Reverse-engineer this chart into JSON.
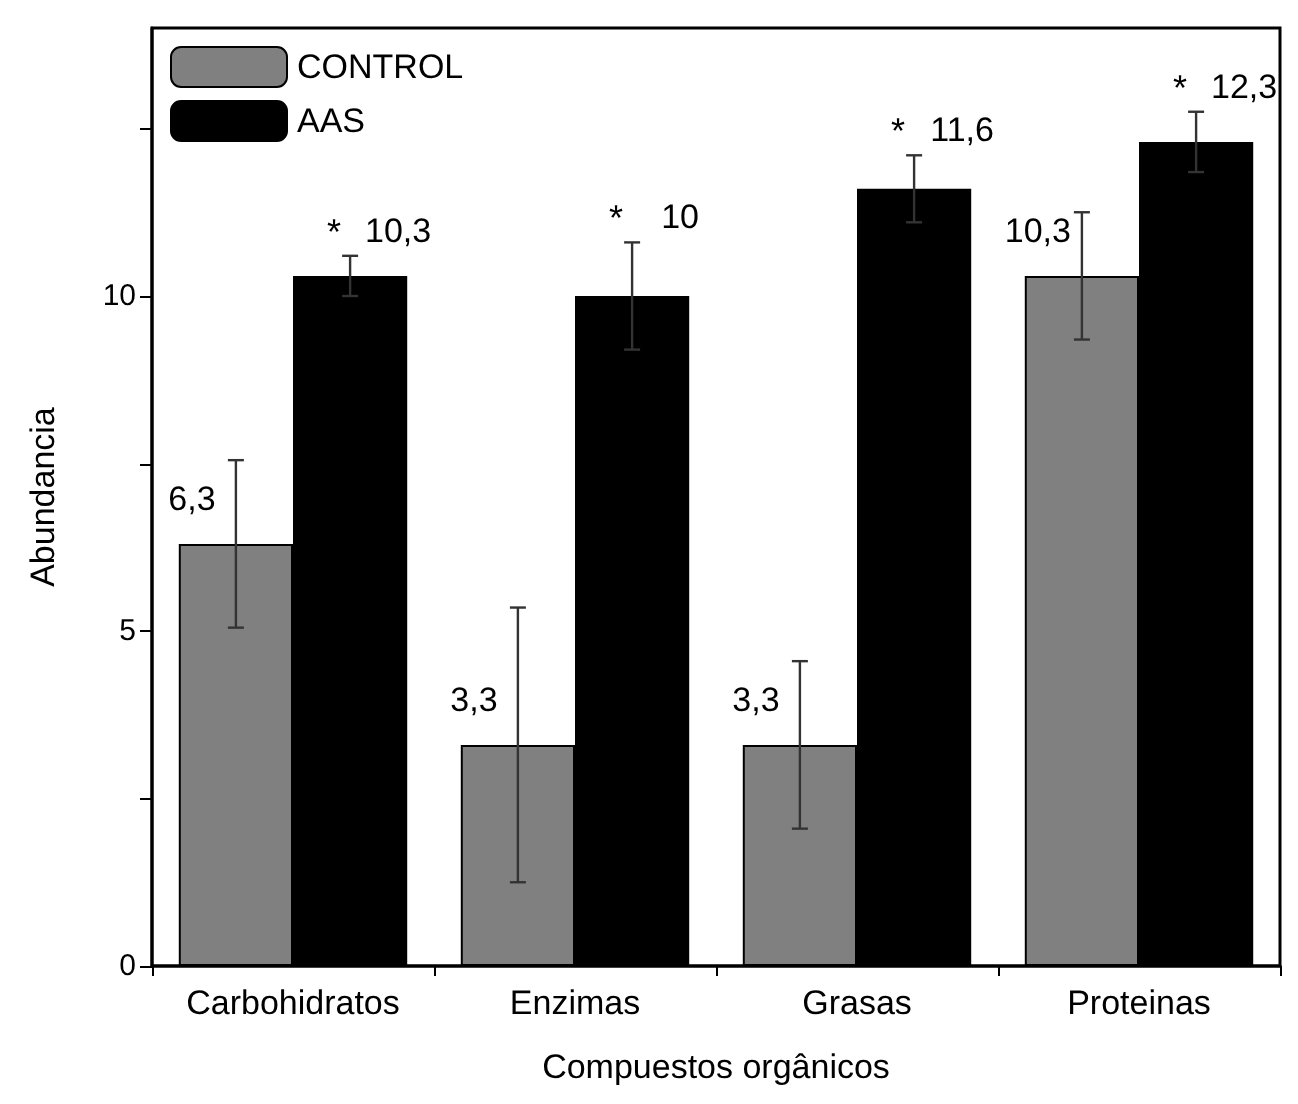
{
  "chart_data": {
    "type": "bar",
    "xlabel": "Compuestos orgânicos",
    "ylabel": "Abundancia",
    "categories": [
      "Carbohidratos",
      "Enzimas",
      "Grasas",
      "Proteinas"
    ],
    "series": [
      {
        "name": "CONTROL",
        "color": "#808080",
        "values": [
          6.3,
          3.3,
          3.3,
          10.3
        ],
        "errors": [
          1.25,
          2.05,
          1.25,
          0.95
        ],
        "value_labels": [
          "6,3",
          "3,3",
          "3,3",
          "10,3"
        ]
      },
      {
        "name": "AAS",
        "color": "#000000",
        "values": [
          10.3,
          10,
          11.6,
          12.3
        ],
        "errors": [
          0.3,
          0.8,
          0.5,
          0.45
        ],
        "value_labels": [
          "10,3",
          "10",
          "11,6",
          "12,3"
        ]
      }
    ],
    "annotations": [
      "*",
      "*",
      "*",
      "*"
    ],
    "ylim": [
      0,
      14
    ],
    "yticks": [
      0,
      {
        "value": 2.5,
        "label": null
      },
      5,
      {
        "value": 7.5,
        "label": null
      },
      10,
      {
        "value": 12.5,
        "label": null
      }
    ],
    "grid": false,
    "legend": "top left"
  }
}
